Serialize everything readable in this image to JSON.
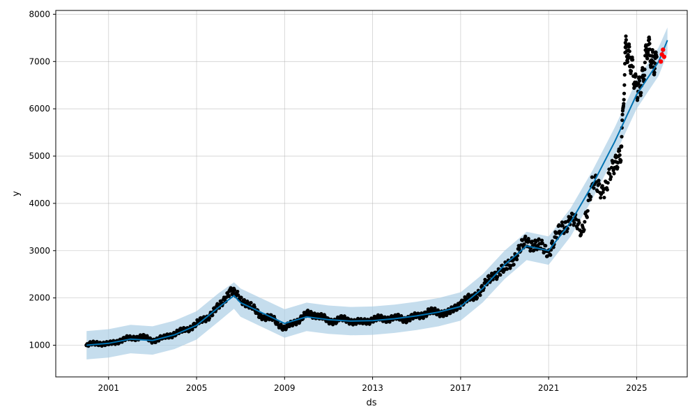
{
  "chart_data": {
    "type": "line",
    "title": "",
    "xlabel": "ds",
    "ylabel": "y",
    "xlim": [
      1998.6,
      2027.3
    ],
    "ylim": [
      330,
      8080
    ],
    "x_ticks": [
      2001,
      2005,
      2009,
      2013,
      2017,
      2021,
      2025
    ],
    "x_tick_labels": [
      "2001",
      "2005",
      "2009",
      "2013",
      "2017",
      "2021",
      "2025"
    ],
    "y_ticks": [
      1000,
      2000,
      3000,
      4000,
      5000,
      6000,
      7000,
      8000
    ],
    "y_tick_labels": [
      "1000",
      "2000",
      "3000",
      "4000",
      "5000",
      "6000",
      "7000",
      "8000"
    ],
    "grid": true,
    "colors": {
      "observed": "#000000",
      "forecast": "#0072B2",
      "interval": "#a6cbe3",
      "highlight": "#ff0000"
    },
    "series": [
      {
        "role": "observed",
        "x": [
          2000.0,
          2000.5,
          2001.0,
          2001.5,
          2002.0,
          2002.5,
          2003.0,
          2003.5,
          2004.0,
          2004.5,
          2005.0,
          2005.5,
          2006.0,
          2006.5,
          2007.0,
          2007.5,
          2008.0,
          2008.5,
          2009.0,
          2009.5,
          2010.0,
          2010.5,
          2011.0,
          2011.5,
          2012.0,
          2012.5,
          2013.0,
          2013.5,
          2014.0,
          2014.5,
          2015.0,
          2015.5,
          2016.0,
          2016.5,
          2017.0,
          2017.5,
          2018.0,
          2018.5,
          2019.0,
          2019.5,
          2020.0,
          2020.5,
          2021.0,
          2021.5,
          2022.0,
          2022.5,
          2023.0,
          2023.5,
          2024.0,
          2024.3,
          2024.5,
          2024.7,
          2025.0,
          2025.3,
          2025.5,
          2025.7,
          2025.9
        ],
        "y": [
          1000,
          1050,
          1020,
          1100,
          1150,
          1180,
          1100,
          1160,
          1250,
          1320,
          1450,
          1600,
          1800,
          2150,
          2000,
          1800,
          1600,
          1550,
          1350,
          1500,
          1650,
          1650,
          1500,
          1550,
          1520,
          1480,
          1550,
          1560,
          1580,
          1560,
          1600,
          1700,
          1700,
          1680,
          1900,
          2000,
          2200,
          2500,
          2600,
          2900,
          3200,
          3100,
          3000,
          3400,
          3700,
          3400,
          4400,
          4300,
          4750,
          5200,
          7300,
          6900,
          6500,
          6700,
          7200,
          7000,
          7100
        ]
      },
      {
        "role": "forecast",
        "x": [
          2000.0,
          2001.0,
          2002.0,
          2003.0,
          2004.0,
          2005.0,
          2006.0,
          2006.7,
          2007.0,
          2008.0,
          2009.0,
          2010.0,
          2011.0,
          2012.0,
          2013.0,
          2014.0,
          2015.0,
          2016.0,
          2017.0,
          2018.0,
          2019.0,
          2020.0,
          2020.5,
          2021.0,
          2022.0,
          2023.0,
          2024.0,
          2025.0,
          2026.0,
          2026.4
        ],
        "y": [
          1000,
          1040,
          1130,
          1100,
          1220,
          1420,
          1800,
          2050,
          1900,
          1680,
          1460,
          1600,
          1540,
          1510,
          1520,
          1560,
          1620,
          1700,
          1820,
          2200,
          2700,
          3100,
          3050,
          3000,
          3600,
          4400,
          5300,
          6300,
          7000,
          7450
        ]
      }
    ],
    "interval": {
      "x": [
        2000.0,
        2001.0,
        2002.0,
        2003.0,
        2004.0,
        2005.0,
        2006.0,
        2006.7,
        2007.0,
        2008.0,
        2009.0,
        2010.0,
        2011.0,
        2012.0,
        2013.0,
        2014.0,
        2015.0,
        2016.0,
        2017.0,
        2018.0,
        2019.0,
        2020.0,
        2020.5,
        2021.0,
        2022.0,
        2023.0,
        2024.0,
        2025.0,
        2026.0,
        2026.4
      ],
      "upper": [
        1300,
        1340,
        1430,
        1400,
        1520,
        1720,
        2100,
        2330,
        2200,
        1980,
        1760,
        1900,
        1840,
        1810,
        1820,
        1860,
        1920,
        2000,
        2120,
        2500,
        3000,
        3400,
        3350,
        3300,
        3900,
        4700,
        5600,
        6600,
        7300,
        7720
      ],
      "lower": [
        700,
        740,
        830,
        800,
        920,
        1120,
        1500,
        1770,
        1600,
        1380,
        1160,
        1300,
        1240,
        1210,
        1220,
        1260,
        1320,
        1400,
        1520,
        1900,
        2400,
        2800,
        2750,
        2700,
        3300,
        4100,
        5000,
        6000,
        6700,
        7170
      ]
    },
    "highlight": {
      "x": [
        2026.1,
        2026.15,
        2026.2,
        2026.25
      ],
      "y": [
        7000,
        7150,
        7250,
        7100
      ]
    }
  }
}
